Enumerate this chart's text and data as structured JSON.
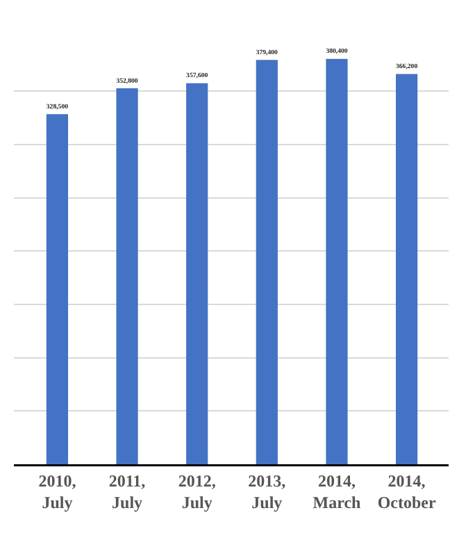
{
  "chart_data": {
    "type": "bar",
    "categories": [
      "2010,\nJuly",
      "2011,\nJuly",
      "2012,\nJuly",
      "2013,\nJuly",
      "2014,\nMarch",
      "2014,\nOctober"
    ],
    "values": [
      328500,
      352800,
      357600,
      379400,
      380400,
      366200
    ],
    "value_labels": [
      "328,500",
      "352,800",
      "357,600",
      "379,400",
      "380,400",
      "366,200"
    ],
    "color": "#4472c4",
    "grid": "y",
    "tick_labels": "x"
  }
}
